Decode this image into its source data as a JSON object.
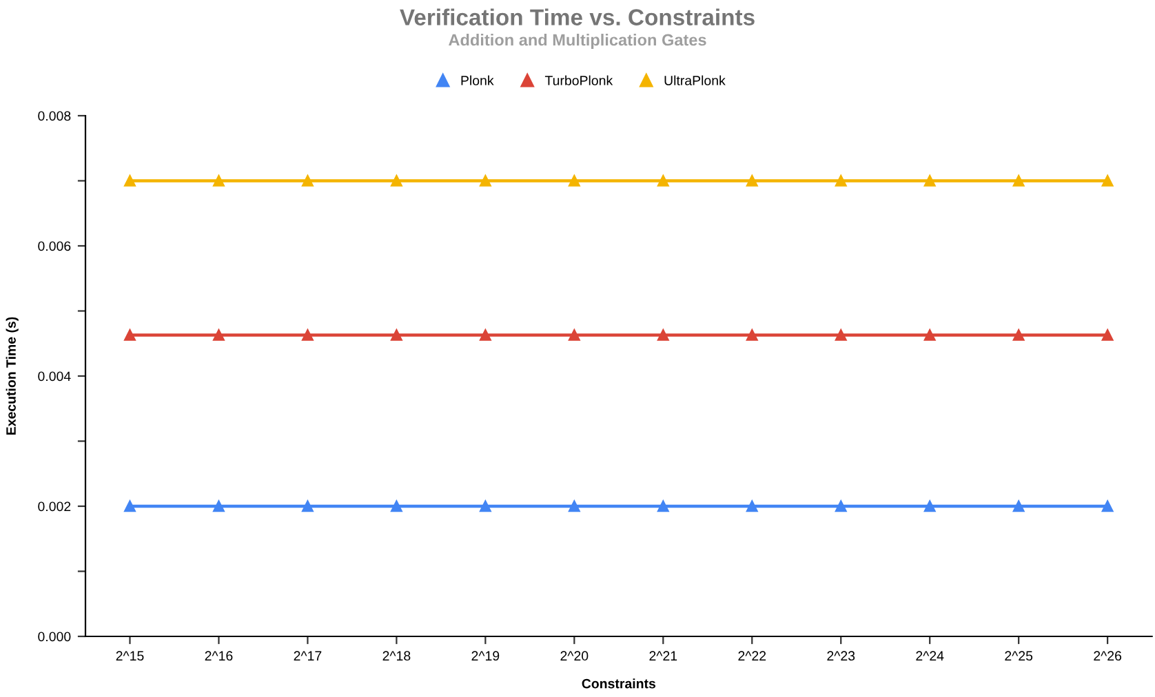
{
  "chart_data": {
    "type": "line",
    "title": "Verification Time vs. Constraints",
    "subtitle": "Addition and Multiplication Gates",
    "xlabel": "Constraints",
    "ylabel": "Execution Time (s)",
    "categories": [
      "2^15",
      "2^16",
      "2^17",
      "2^18",
      "2^19",
      "2^20",
      "2^21",
      "2^22",
      "2^23",
      "2^24",
      "2^25",
      "2^26"
    ],
    "series": [
      {
        "name": "Plonk",
        "color": "#4285f4",
        "values": [
          0.002,
          0.002,
          0.002,
          0.002,
          0.002,
          0.002,
          0.002,
          0.002,
          0.002,
          0.002,
          0.002,
          0.002
        ]
      },
      {
        "name": "TurboPlonk",
        "color": "#db4437",
        "values": [
          0.00463,
          0.00463,
          0.00463,
          0.00463,
          0.00463,
          0.00463,
          0.00463,
          0.00463,
          0.00463,
          0.00463,
          0.00463,
          0.00463
        ]
      },
      {
        "name": "UltraPlonk",
        "color": "#f4b400",
        "values": [
          0.007,
          0.007,
          0.007,
          0.007,
          0.007,
          0.007,
          0.007,
          0.007,
          0.007,
          0.007,
          0.007,
          0.007
        ]
      }
    ],
    "ylim": [
      0,
      0.008
    ],
    "yticks": [
      {
        "value": 0,
        "label": "0.000"
      },
      {
        "value": 0.001,
        "label": null
      },
      {
        "value": 0.002,
        "label": "0.002"
      },
      {
        "value": 0.003,
        "label": null
      },
      {
        "value": 0.004,
        "label": "0.004"
      },
      {
        "value": 0.005,
        "label": null
      },
      {
        "value": 0.006,
        "label": "0.006"
      },
      {
        "value": 0.007,
        "label": null
      },
      {
        "value": 0.008,
        "label": "0.008"
      }
    ],
    "grid": false,
    "legend": "top",
    "marker": "triangle",
    "line_style": "solid"
  }
}
